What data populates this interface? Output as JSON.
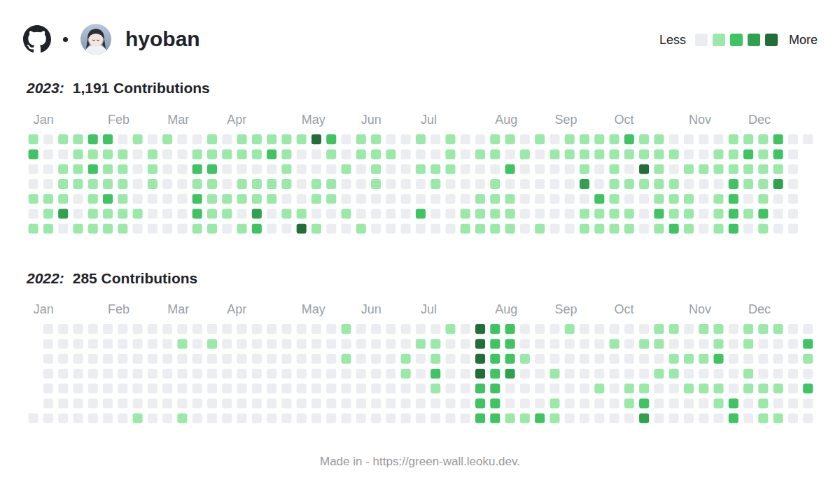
{
  "header": {
    "username": "hyoban"
  },
  "color_legend": {
    "low_label": "Less",
    "high_label": "More",
    "levels": [
      0,
      1,
      2,
      3,
      4
    ],
    "colors": [
      "#ebedf0",
      "#9be9a8",
      "#40c463",
      "#30a14e",
      "#216e39"
    ]
  },
  "chart_data": [
    {
      "type": "heatmap",
      "title": "2023:",
      "subtitle": "1,191 Contributions",
      "tick_labels": "x",
      "categories": [
        "Jan",
        null,
        null,
        null,
        null,
        "Feb",
        null,
        null,
        null,
        "Mar",
        null,
        null,
        null,
        "Apr",
        null,
        null,
        null,
        null,
        "May",
        null,
        null,
        null,
        "Jun",
        null,
        null,
        null,
        "Jul",
        null,
        null,
        null,
        null,
        "Aug",
        null,
        null,
        null,
        "Sep",
        null,
        null,
        null,
        "Oct",
        null,
        null,
        null,
        null,
        "Nov",
        null,
        null,
        null,
        "Dec",
        null,
        null,
        null,
        null
      ],
      "cells": [
        [
          1,
          0,
          1,
          1,
          2,
          2,
          0,
          1,
          0,
          1,
          0,
          0,
          1,
          0,
          1,
          1,
          1,
          1,
          1,
          4,
          2,
          0,
          1,
          1,
          0,
          0,
          1,
          0,
          1,
          0,
          0,
          1,
          1,
          0,
          1,
          0,
          1,
          1,
          1,
          1,
          2,
          1,
          1,
          0,
          0,
          0,
          0,
          1,
          1,
          1,
          2,
          0,
          0
        ],
        [
          2,
          0,
          0,
          1,
          1,
          1,
          1,
          0,
          1,
          0,
          0,
          1,
          1,
          1,
          1,
          1,
          2,
          1,
          0,
          0,
          1,
          0,
          1,
          1,
          1,
          0,
          0,
          0,
          1,
          0,
          1,
          1,
          0,
          1,
          0,
          1,
          1,
          1,
          1,
          1,
          1,
          1,
          1,
          1,
          0,
          0,
          1,
          1,
          2,
          1,
          2,
          0,
          null
        ],
        [
          0,
          0,
          1,
          1,
          2,
          1,
          1,
          0,
          1,
          0,
          0,
          2,
          2,
          0,
          0,
          0,
          0,
          1,
          0,
          0,
          0,
          1,
          0,
          1,
          0,
          0,
          1,
          1,
          1,
          0,
          0,
          0,
          2,
          0,
          0,
          0,
          0,
          1,
          0,
          1,
          0,
          4,
          1,
          0,
          1,
          1,
          1,
          1,
          1,
          1,
          1,
          0,
          null
        ],
        [
          0,
          0,
          1,
          1,
          1,
          1,
          1,
          0,
          1,
          0,
          0,
          1,
          1,
          0,
          1,
          1,
          1,
          1,
          0,
          1,
          1,
          0,
          0,
          1,
          0,
          0,
          0,
          1,
          0,
          0,
          0,
          1,
          0,
          0,
          0,
          0,
          0,
          3,
          0,
          1,
          1,
          1,
          1,
          1,
          0,
          0,
          0,
          2,
          1,
          1,
          3,
          0,
          null
        ],
        [
          1,
          1,
          1,
          0,
          1,
          2,
          1,
          0,
          0,
          0,
          0,
          2,
          1,
          1,
          1,
          1,
          1,
          0,
          0,
          1,
          1,
          0,
          0,
          0,
          0,
          0,
          0,
          0,
          0,
          0,
          1,
          1,
          1,
          0,
          0,
          0,
          0,
          0,
          2,
          1,
          0,
          0,
          1,
          1,
          1,
          0,
          1,
          2,
          0,
          1,
          0,
          0,
          null
        ],
        [
          0,
          1,
          3,
          0,
          1,
          1,
          1,
          1,
          0,
          0,
          0,
          2,
          1,
          1,
          0,
          3,
          0,
          1,
          1,
          0,
          0,
          1,
          0,
          0,
          0,
          0,
          2,
          0,
          0,
          1,
          1,
          1,
          1,
          0,
          0,
          0,
          0,
          1,
          1,
          1,
          1,
          0,
          2,
          1,
          1,
          0,
          1,
          2,
          1,
          2,
          0,
          0,
          null
        ],
        [
          1,
          1,
          0,
          1,
          1,
          1,
          1,
          0,
          0,
          0,
          0,
          1,
          1,
          0,
          1,
          2,
          0,
          0,
          4,
          1,
          0,
          0,
          1,
          0,
          0,
          0,
          0,
          0,
          0,
          1,
          1,
          1,
          1,
          0,
          1,
          0,
          0,
          1,
          1,
          1,
          1,
          0,
          1,
          2,
          1,
          0,
          1,
          2,
          0,
          1,
          0,
          0,
          null
        ]
      ]
    },
    {
      "type": "heatmap",
      "title": "2022:",
      "subtitle": "285 Contributions",
      "tick_labels": "x",
      "categories": [
        "Jan",
        null,
        null,
        null,
        null,
        "Feb",
        null,
        null,
        null,
        "Mar",
        null,
        null,
        null,
        "Apr",
        null,
        null,
        null,
        null,
        "May",
        null,
        null,
        null,
        "Jun",
        null,
        null,
        null,
        "Jul",
        null,
        null,
        null,
        null,
        "Aug",
        null,
        null,
        null,
        "Sep",
        null,
        null,
        null,
        "Oct",
        null,
        null,
        null,
        null,
        "Nov",
        null,
        null,
        null,
        "Dec",
        null,
        null,
        null,
        null
      ],
      "cells": [
        [
          null,
          0,
          0,
          0,
          0,
          0,
          0,
          0,
          0,
          0,
          0,
          0,
          0,
          0,
          0,
          0,
          0,
          0,
          0,
          0,
          0,
          1,
          0,
          0,
          0,
          0,
          0,
          0,
          1,
          0,
          4,
          2,
          2,
          0,
          0,
          0,
          1,
          0,
          0,
          0,
          0,
          0,
          1,
          1,
          0,
          1,
          1,
          0,
          1,
          1,
          1,
          0,
          0
        ],
        [
          null,
          0,
          0,
          0,
          0,
          0,
          0,
          0,
          0,
          0,
          1,
          0,
          1,
          0,
          0,
          0,
          0,
          0,
          0,
          0,
          0,
          0,
          0,
          0,
          0,
          0,
          1,
          1,
          0,
          0,
          4,
          2,
          2,
          0,
          0,
          0,
          0,
          0,
          0,
          1,
          0,
          1,
          1,
          0,
          0,
          0,
          1,
          0,
          1,
          0,
          0,
          0,
          2
        ],
        [
          null,
          0,
          0,
          0,
          0,
          0,
          0,
          0,
          0,
          0,
          0,
          0,
          0,
          0,
          0,
          0,
          0,
          0,
          0,
          0,
          0,
          1,
          0,
          0,
          0,
          1,
          0,
          1,
          0,
          0,
          4,
          2,
          2,
          1,
          0,
          0,
          0,
          0,
          0,
          0,
          0,
          0,
          0,
          1,
          1,
          1,
          2,
          0,
          0,
          0,
          0,
          0,
          1
        ],
        [
          null,
          0,
          0,
          0,
          0,
          0,
          0,
          0,
          0,
          0,
          0,
          0,
          0,
          0,
          0,
          0,
          0,
          0,
          0,
          0,
          0,
          0,
          0,
          0,
          0,
          1,
          0,
          2,
          0,
          0,
          4,
          2,
          3,
          0,
          0,
          1,
          0,
          0,
          0,
          0,
          0,
          0,
          1,
          1,
          0,
          0,
          0,
          0,
          1,
          0,
          0,
          0,
          0
        ],
        [
          null,
          0,
          0,
          0,
          0,
          0,
          0,
          0,
          0,
          0,
          0,
          0,
          0,
          0,
          0,
          0,
          0,
          0,
          0,
          0,
          0,
          0,
          0,
          0,
          0,
          0,
          0,
          1,
          0,
          0,
          2,
          2,
          0,
          0,
          0,
          0,
          0,
          0,
          1,
          0,
          1,
          1,
          0,
          0,
          1,
          1,
          1,
          0,
          1,
          1,
          1,
          0,
          2
        ],
        [
          null,
          0,
          0,
          0,
          0,
          0,
          0,
          0,
          0,
          0,
          0,
          0,
          0,
          0,
          0,
          0,
          0,
          0,
          0,
          0,
          0,
          0,
          0,
          0,
          0,
          0,
          0,
          0,
          0,
          0,
          2,
          2,
          0,
          0,
          0,
          1,
          0,
          0,
          0,
          0,
          1,
          2,
          0,
          0,
          0,
          0,
          1,
          2,
          0,
          1,
          0,
          0,
          0
        ],
        [
          0,
          0,
          0,
          0,
          0,
          0,
          0,
          1,
          0,
          0,
          1,
          0,
          0,
          0,
          0,
          0,
          0,
          0,
          0,
          0,
          0,
          0,
          0,
          0,
          0,
          0,
          0,
          0,
          0,
          0,
          2,
          2,
          1,
          1,
          2,
          1,
          0,
          0,
          0,
          0,
          0,
          3,
          0,
          0,
          0,
          0,
          0,
          2,
          0,
          1,
          1,
          0,
          0
        ]
      ]
    }
  ],
  "footer": "Made in - https://green-wall.leoku.dev."
}
